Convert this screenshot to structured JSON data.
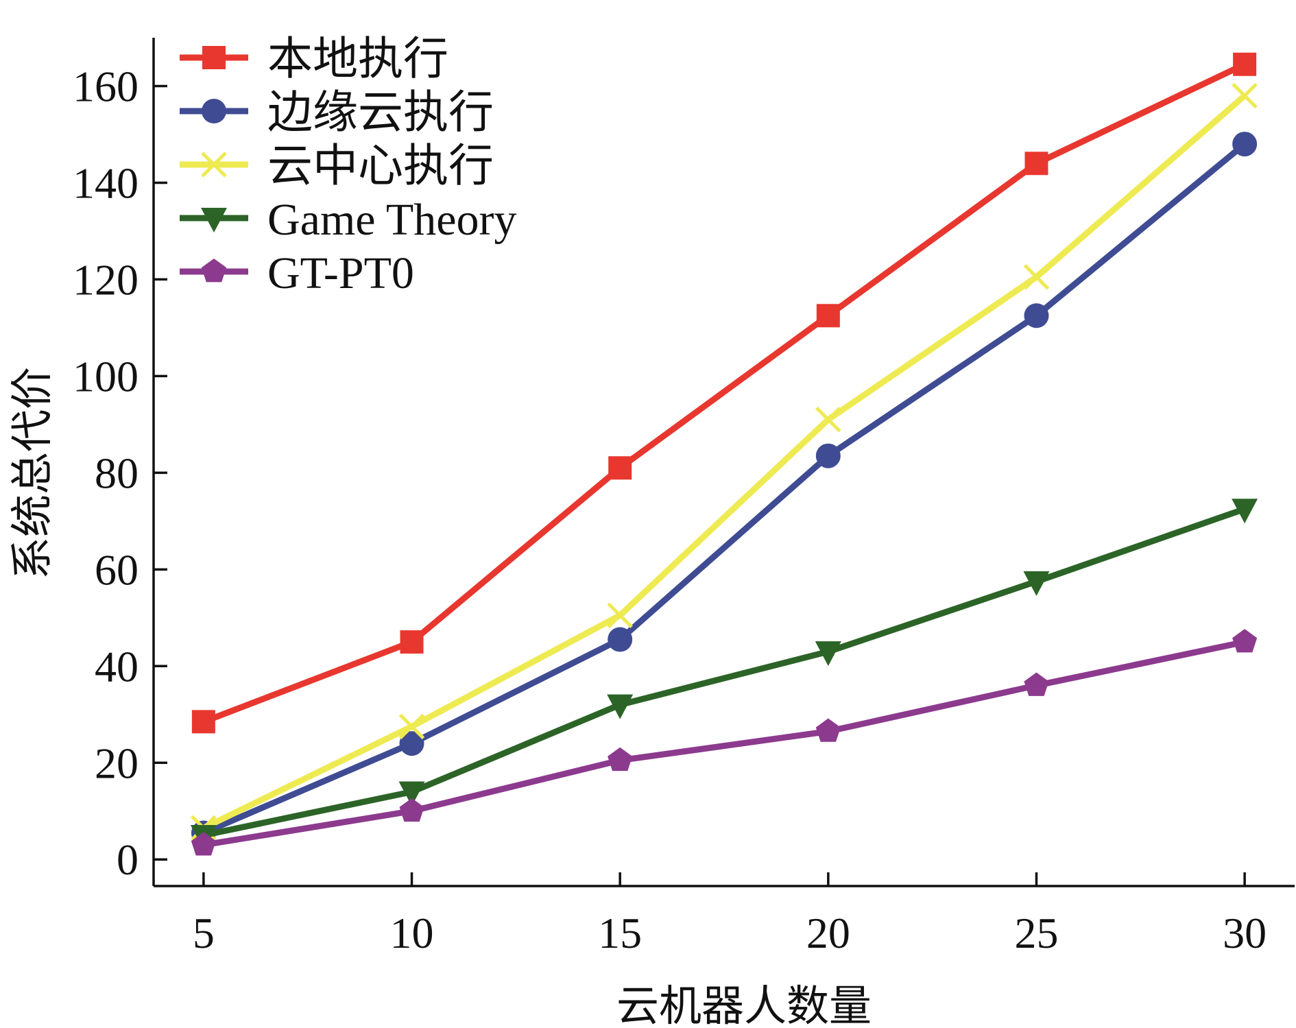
{
  "chart_data": {
    "type": "line",
    "title": "",
    "xlabel": "云机器人数量",
    "ylabel": "系统总代价",
    "x": [
      5,
      10,
      15,
      20,
      25,
      30
    ],
    "xlim": [
      3.8,
      31.2
    ],
    "ylim": [
      -5.5,
      170
    ],
    "xticks": [
      5,
      10,
      15,
      20,
      25,
      30
    ],
    "yticks": [
      0,
      20,
      40,
      60,
      80,
      100,
      120,
      140,
      160
    ],
    "grid": false,
    "legend_position": "top-left",
    "series": [
      {
        "name": "本地执行",
        "color": "#e8372f",
        "marker": "square",
        "values": [
          28.5,
          45,
          81,
          112.5,
          144,
          164.5
        ]
      },
      {
        "name": "边缘云执行",
        "color": "#3f4c93",
        "marker": "circle",
        "values": [
          5.5,
          24,
          45.5,
          83.5,
          112.5,
          148
        ]
      },
      {
        "name": "云中心执行",
        "color": "#eeea52",
        "marker": "x",
        "values": [
          6.5,
          27.5,
          50.5,
          91,
          120.5,
          158
        ]
      },
      {
        "name": "Game Theory",
        "color": "#2c6427",
        "marker": "triangle-down",
        "values": [
          5,
          14,
          32,
          43,
          57.5,
          72.5
        ]
      },
      {
        "name": "GT-PT0",
        "color": "#8c3a8e",
        "marker": "pentagon",
        "values": [
          3,
          10,
          20.5,
          26.5,
          36,
          45
        ]
      }
    ]
  }
}
